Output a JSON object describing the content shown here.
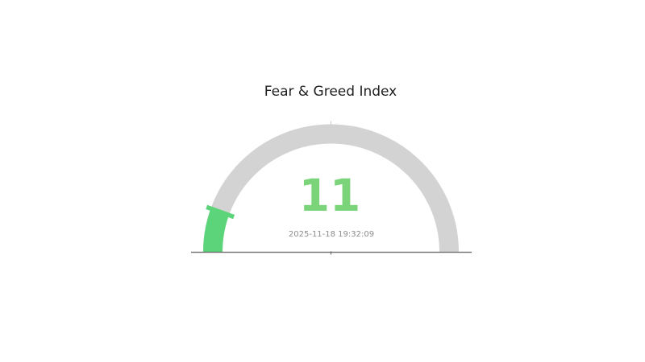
{
  "chart_data": {
    "type": "gauge",
    "title": "Fear & Greed Index",
    "value": 11,
    "min": 0,
    "max": 100,
    "arc_span_degrees": 180,
    "value_label": "11",
    "timestamp": "2025-11-18 19:32:09",
    "legend": "none",
    "grid": false,
    "colors": {
      "track": "#d3d3d3",
      "value_arc": "#5bd47a",
      "value_text": "#7cd47a",
      "timestamp_text": "#8c8c8c",
      "title_text": "#1f1f1f",
      "baseline": "#6b6b6b",
      "top_tick": "#c9c9c9"
    }
  }
}
